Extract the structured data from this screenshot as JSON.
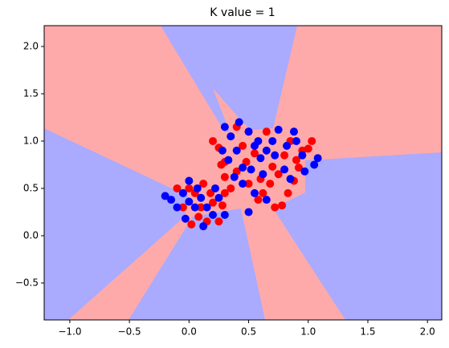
{
  "chart_data": {
    "type": "scatter",
    "title": "K value = 1",
    "xlim": [
      -1.215,
      2.12
    ],
    "ylim": [
      -0.89,
      2.22
    ],
    "xticks": [
      {
        "value": -1,
        "label": "−1.0"
      },
      {
        "value": -0.5,
        "label": "−0.5"
      },
      {
        "value": 0,
        "label": "0.0"
      },
      0.5,
      {
        "value": 1,
        "label": "1.0"
      },
      1.5,
      {
        "value": 2,
        "label": "2.0"
      }
    ],
    "yticks": [
      {
        "value": -0.5,
        "label": "−0.5"
      },
      {
        "value": 0,
        "label": "0.0"
      },
      0.5,
      {
        "value": 1,
        "label": "1.0"
      },
      1.5,
      {
        "value": 2,
        "label": "2.0"
      }
    ],
    "series": [
      {
        "color": "#ff0000",
        "x": [
          0.0,
          0.05,
          0.1,
          0.15,
          0.25,
          0.2,
          -0.05,
          0.02,
          0.12,
          0.3,
          0.18,
          0.08,
          0.28,
          -0.1,
          0.25,
          0.3,
          0.3,
          0.35,
          0.4,
          0.45,
          0.5,
          0.55,
          0.6,
          0.62,
          0.7,
          0.75,
          0.8,
          0.85,
          0.9,
          0.95,
          1.0,
          0.72,
          0.78,
          0.83,
          0.5,
          0.48,
          0.65,
          0.4,
          0.2,
          0.27,
          0.58,
          0.68,
          0.92,
          1.03,
          0.88
        ],
        "y": [
          0.5,
          0.45,
          0.3,
          0.15,
          0.15,
          0.35,
          0.3,
          0.12,
          0.55,
          0.45,
          0.45,
          0.2,
          0.32,
          0.5,
          0.93,
          0.78,
          0.62,
          0.5,
          0.68,
          0.95,
          1.1,
          0.87,
          0.6,
          0.45,
          0.73,
          0.65,
          0.85,
          1.0,
          0.8,
          0.9,
          0.92,
          0.3,
          0.32,
          0.45,
          0.55,
          0.78,
          1.1,
          1.15,
          1.0,
          0.75,
          0.38,
          0.55,
          0.72,
          1.0,
          0.58
        ]
      },
      {
        "color": "#0000ff",
        "x": [
          -0.2,
          -0.15,
          -0.1,
          -0.05,
          0.0,
          0.05,
          0.1,
          0.12,
          0.15,
          0.2,
          0.25,
          -0.03,
          0.07,
          0.3,
          0.22,
          0.0,
          0.3,
          0.35,
          0.4,
          0.42,
          0.5,
          0.52,
          0.55,
          0.6,
          0.62,
          0.65,
          0.7,
          0.72,
          0.75,
          0.8,
          0.82,
          0.85,
          0.9,
          0.95,
          1.05,
          1.08,
          0.45,
          0.38,
          0.55,
          0.65,
          0.5,
          0.33,
          0.45,
          0.58,
          0.88,
          0.97,
          0.28
        ],
        "y": [
          0.42,
          0.38,
          0.3,
          0.45,
          0.58,
          0.3,
          0.4,
          0.1,
          0.3,
          0.22,
          0.4,
          0.18,
          0.5,
          0.22,
          0.5,
          0.36,
          1.15,
          1.05,
          0.9,
          1.2,
          1.1,
          0.7,
          0.95,
          0.82,
          0.65,
          0.9,
          1.0,
          0.85,
          1.12,
          0.7,
          0.95,
          0.6,
          1.0,
          0.85,
          0.75,
          0.82,
          0.55,
          0.62,
          0.45,
          0.38,
          0.25,
          0.8,
          0.72,
          1.0,
          1.1,
          0.68,
          0.9
        ]
      }
    ]
  }
}
